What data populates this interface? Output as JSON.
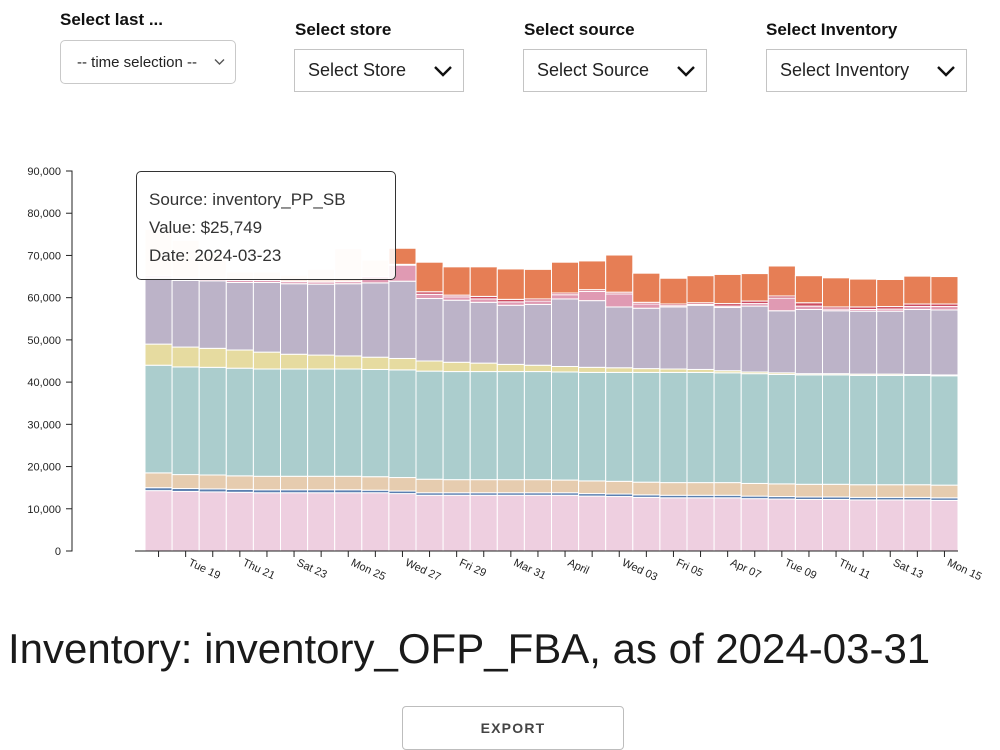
{
  "filters": {
    "time": {
      "label": "Select last ...",
      "value": "-- time selection --"
    },
    "store": {
      "label": "Select store",
      "value": "Select Store"
    },
    "source": {
      "label": "Select source",
      "value": "Select Source"
    },
    "inventory": {
      "label": "Select Inventory",
      "value": "Select Inventory"
    }
  },
  "tooltip": {
    "source": "Source: inventory_PP_SB",
    "value": "Value: $25,749",
    "date": "Date: 2024-03-23"
  },
  "page_title": "Inventory: inventory_OFP_FBA, as of 2024-03-31",
  "export_label": "EXPORT",
  "chart_data": {
    "type": "bar",
    "stacked": true,
    "title": "",
    "xlabel": "",
    "ylabel": "",
    "ylim": [
      0,
      90000
    ],
    "yticks": [
      0,
      10000,
      20000,
      30000,
      40000,
      50000,
      60000,
      70000,
      80000,
      90000
    ],
    "ytick_labels": [
      "0",
      "10,000",
      "20,000",
      "30,000",
      "40,000",
      "50,000",
      "60,000",
      "70,000",
      "80,000",
      "90,000"
    ],
    "categories": [
      "2024-03-18",
      "2024-03-19",
      "2024-03-20",
      "2024-03-21",
      "2024-03-22",
      "2024-03-23",
      "2024-03-24",
      "2024-03-25",
      "2024-03-26",
      "2024-03-27",
      "2024-03-28",
      "2024-03-29",
      "2024-03-30",
      "2024-03-31",
      "2024-04-01",
      "2024-04-02",
      "2024-04-03",
      "2024-04-04",
      "2024-04-05",
      "2024-04-06",
      "2024-04-07",
      "2024-04-08",
      "2024-04-09",
      "2024-04-10",
      "2024-04-11",
      "2024-04-12",
      "2024-04-13",
      "2024-04-14",
      "2024-04-15",
      "2024-04-16"
    ],
    "x_tick_labels": [
      "Tue 19",
      "Thu 21",
      "Sat 23",
      "Mon 25",
      "Wed 27",
      "Fri 29",
      "Mar 31",
      "April",
      "Wed 03",
      "Fri 05",
      "Apr 07",
      "Tue 09",
      "Thu 11",
      "Sat 13",
      "Mon 15"
    ],
    "highlighted_category": "2024-03-23",
    "colors": {
      "pink": "#eecfe0",
      "blue": "#5a7fb0",
      "tan": "#e6ccaf",
      "teal": "#abcdcd",
      "yellow": "#e6dba0",
      "purple": "#bcb3c8",
      "rose": "#e09ab3",
      "red": "#cc4b60",
      "orange": "#e67e55"
    },
    "series": [
      {
        "color": "pink",
        "values": [
          14300,
          14100,
          14000,
          13900,
          13800,
          13800,
          13800,
          13800,
          13800,
          13600,
          13200,
          13200,
          13200,
          13200,
          13200,
          13200,
          13000,
          12900,
          12700,
          12600,
          12600,
          12600,
          12400,
          12300,
          12200,
          12200,
          12100,
          12100,
          12100,
          12000
        ]
      },
      {
        "color": "blue",
        "values": [
          700,
          700,
          700,
          700,
          700,
          700,
          700,
          700,
          600,
          600,
          600,
          600,
          600,
          600,
          600,
          600,
          600,
          600,
          600,
          600,
          600,
          600,
          600,
          600,
          600,
          600,
          600,
          600,
          600,
          600
        ]
      },
      {
        "color": "tan",
        "values": [
          3500,
          3300,
          3300,
          3200,
          3200,
          3200,
          3200,
          3200,
          3200,
          3200,
          3200,
          3100,
          3100,
          3100,
          3100,
          3000,
          3000,
          3000,
          3000,
          3000,
          3000,
          3000,
          3000,
          3000,
          3000,
          3000,
          3000,
          3000,
          3000,
          3000
        ]
      },
      {
        "color": "teal",
        "values": [
          25500,
          25500,
          25500,
          25500,
          25400,
          25400,
          25400,
          25400,
          25400,
          25500,
          25600,
          25600,
          25600,
          25600,
          25600,
          25600,
          25700,
          25800,
          26000,
          26100,
          26100,
          26000,
          26000,
          25900,
          25900,
          25900,
          25900,
          25900,
          25900,
          25900
        ]
      },
      {
        "color": "yellow",
        "values": [
          5000,
          4700,
          4500,
          4300,
          4000,
          3500,
          3300,
          3100,
          2900,
          2700,
          2400,
          2200,
          2000,
          1700,
          1500,
          1300,
          1200,
          1100,
          900,
          800,
          700,
          500,
          400,
          400,
          300,
          300,
          300,
          300,
          200,
          200
        ]
      },
      {
        "color": "purple",
        "values": [
          15700,
          15800,
          16000,
          16000,
          16500,
          16700,
          16800,
          17100,
          17600,
          18300,
          14800,
          14700,
          14400,
          14000,
          14400,
          16000,
          15800,
          14400,
          14300,
          14700,
          15200,
          15000,
          15600,
          14700,
          15200,
          14900,
          14900,
          14900,
          15400,
          15400
        ]
      },
      {
        "color": "rose",
        "values": [
          500,
          500,
          500,
          500,
          500,
          500,
          500,
          500,
          1500,
          3800,
          1000,
          800,
          800,
          800,
          800,
          1000,
          2200,
          3100,
          1000,
          300,
          200,
          300,
          600,
          3000,
          800,
          400,
          400,
          500,
          700,
          800
        ]
      },
      {
        "color": "red",
        "values": [
          0,
          0,
          0,
          0,
          0,
          0,
          0,
          0,
          0,
          200,
          600,
          400,
          600,
          600,
          500,
          400,
          400,
          400,
          400,
          400,
          400,
          600,
          600,
          500,
          800,
          500,
          600,
          600,
          600,
          600
        ]
      },
      {
        "color": "orange",
        "values": [
          11000,
          9000,
          6000,
          2000,
          2000,
          1500,
          3000,
          7800,
          3900,
          3800,
          7000,
          6700,
          7000,
          7200,
          7000,
          7300,
          6800,
          8800,
          6900,
          6100,
          6400,
          6900,
          6500,
          7100,
          6400,
          6900,
          6600,
          6400,
          6600,
          6500
        ]
      }
    ],
    "faded_before_category": "2024-03-27",
    "grid": false,
    "legend": "none"
  }
}
